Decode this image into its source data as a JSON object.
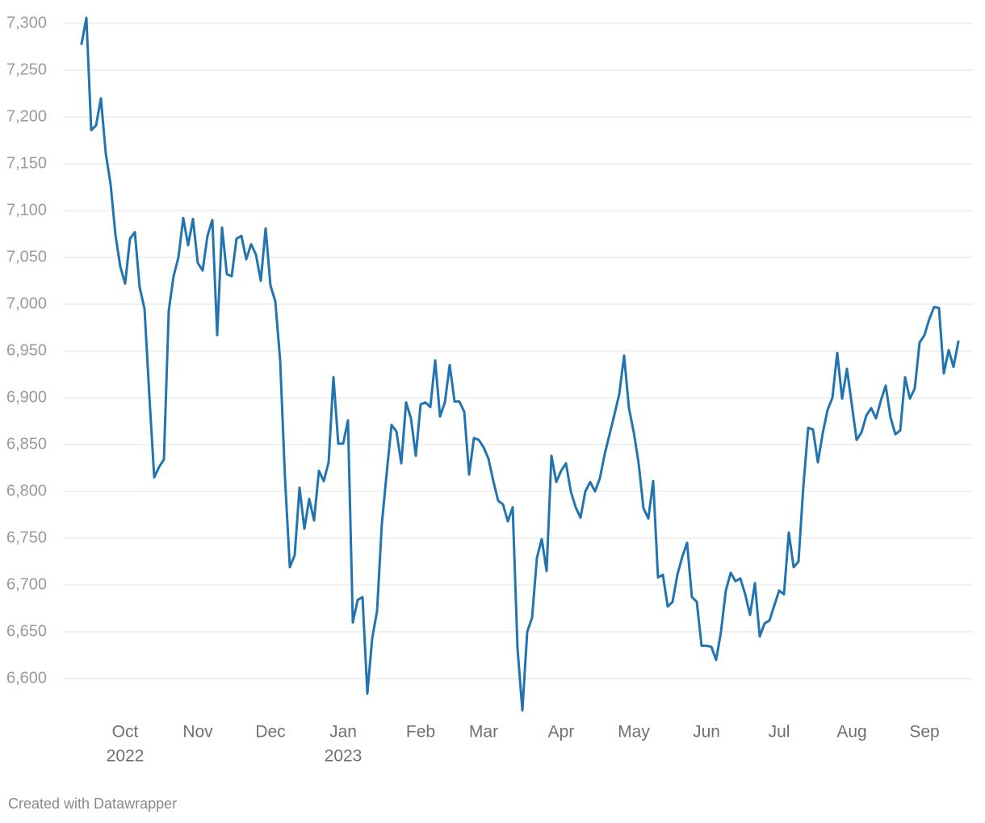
{
  "chart_data": {
    "type": "line",
    "footer": "Created with Datawrapper",
    "categories": [
      null,
      null,
      null,
      null,
      null,
      null,
      null,
      null,
      null,
      "Oct",
      null,
      null,
      null,
      null,
      null,
      null,
      null,
      null,
      null,
      null,
      null,
      null,
      null,
      null,
      "Nov",
      null,
      null,
      null,
      null,
      null,
      null,
      null,
      null,
      null,
      null,
      null,
      null,
      null,
      null,
      "Dec",
      null,
      null,
      null,
      null,
      null,
      null,
      null,
      null,
      null,
      null,
      null,
      null,
      null,
      null,
      "Jan",
      null,
      null,
      null,
      null,
      null,
      null,
      null,
      null,
      null,
      null,
      null,
      null,
      null,
      null,
      null,
      "Feb",
      null,
      null,
      null,
      null,
      null,
      null,
      null,
      null,
      null,
      null,
      null,
      null,
      "Mar",
      null,
      null,
      null,
      null,
      null,
      null,
      null,
      null,
      null,
      null,
      null,
      null,
      null,
      null,
      null,
      "Apr",
      null,
      null,
      null,
      null,
      null,
      null,
      null,
      null,
      null,
      null,
      null,
      null,
      null,
      null,
      "May",
      null,
      null,
      null,
      null,
      null,
      null,
      null,
      null,
      null,
      null,
      null,
      null,
      null,
      null,
      "Jun",
      null,
      null,
      null,
      null,
      null,
      null,
      null,
      null,
      null,
      null,
      null,
      null,
      null,
      null,
      "Jul",
      null,
      null,
      null,
      null,
      null,
      null,
      null,
      null,
      null,
      null,
      null,
      null,
      null,
      null,
      "Aug",
      null,
      null,
      null,
      null,
      null,
      null,
      null,
      null,
      null,
      null,
      null,
      null,
      null,
      null,
      "Sep",
      null,
      null,
      null,
      null,
      null,
      null,
      null
    ],
    "x_years": [
      null,
      null,
      null,
      null,
      null,
      null,
      null,
      null,
      null,
      "2022",
      null,
      null,
      null,
      null,
      null,
      null,
      null,
      null,
      null,
      null,
      null,
      null,
      null,
      null,
      null,
      null,
      null,
      null,
      null,
      null,
      null,
      null,
      null,
      null,
      null,
      null,
      null,
      null,
      null,
      null,
      null,
      null,
      null,
      null,
      null,
      null,
      null,
      null,
      null,
      null,
      null,
      null,
      null,
      null,
      "2023",
      null,
      null,
      null,
      null,
      null,
      null,
      null,
      null,
      null,
      null,
      null,
      null,
      null,
      null,
      null,
      null,
      null,
      null,
      null,
      null,
      null,
      null,
      null,
      null,
      null,
      null,
      null,
      null,
      null,
      null,
      null,
      null,
      null,
      null,
      null,
      null,
      null,
      null,
      null,
      null,
      null,
      null,
      null,
      null,
      null,
      null,
      null,
      null,
      null,
      null,
      null,
      null,
      null,
      null,
      null,
      null,
      null,
      null,
      null,
      null,
      null,
      null,
      null,
      null,
      null,
      null,
      null,
      null,
      null,
      null,
      null,
      null,
      null,
      null,
      null,
      null,
      null,
      null,
      null,
      null,
      null,
      null,
      null,
      null,
      null,
      null,
      null,
      null,
      null,
      null,
      null,
      null,
      null,
      null,
      null,
      null,
      null,
      null,
      null,
      null,
      null,
      null,
      null,
      null,
      null,
      null,
      null,
      null,
      null,
      null,
      null,
      null,
      null,
      null,
      null,
      null,
      null,
      null,
      null,
      null,
      null,
      null,
      null,
      null,
      null,
      null,
      null
    ],
    "series": [
      {
        "name": null,
        "color": "#2274b0",
        "values": [
          7278,
          7306,
          7186,
          7191,
          7220,
          7161,
          7128,
          7074,
          7040,
          7022,
          7070,
          7077,
          7018,
          6995,
          6902,
          6815,
          6826,
          6834,
          6993,
          7030,
          7050,
          7092,
          7063,
          7091,
          7044,
          7036,
          7073,
          7090,
          6967,
          7082,
          7032,
          7030,
          7070,
          7073,
          7048,
          7064,
          7053,
          7025,
          7081,
          7020,
          7003,
          6940,
          6814,
          6719,
          6732,
          6804,
          6760,
          6792,
          6769,
          6822,
          6811,
          6831,
          6922,
          6851,
          6851,
          6876,
          6660,
          6684,
          6687,
          6584,
          6643,
          6672,
          6766,
          6820,
          6871,
          6864,
          6830,
          6895,
          6878,
          6838,
          6893,
          6895,
          6890,
          6940,
          6880,
          6895,
          6935,
          6896,
          6896,
          6885,
          6818,
          6857,
          6855,
          6847,
          6835,
          6811,
          6790,
          6786,
          6768,
          6783,
          6632,
          6566,
          6650,
          6665,
          6729,
          6749,
          6715,
          6838,
          6810,
          6822,
          6830,
          6800,
          6783,
          6772,
          6800,
          6810,
          6800,
          6814,
          6840,
          6861,
          6882,
          6904,
          6945,
          6889,
          6863,
          6830,
          6782,
          6771,
          6811,
          6708,
          6711,
          6677,
          6682,
          6711,
          6730,
          6745,
          6687,
          6682,
          6635,
          6635,
          6634,
          6620,
          6650,
          6694,
          6713,
          6704,
          6707,
          6690,
          6668,
          6702,
          6645,
          6659,
          6662,
          6678,
          6694,
          6690,
          6756,
          6719,
          6725,
          6805,
          6868,
          6866,
          6831,
          6862,
          6887,
          6900,
          6948,
          6899,
          6931,
          6893,
          6855,
          6863,
          6881,
          6889,
          6878,
          6897,
          6913,
          6879,
          6861,
          6865,
          6922,
          6899,
          6910,
          6959,
          6967,
          6984,
          6997,
          6996,
          6926,
          6951,
          6933,
          6960
        ]
      }
    ],
    "ylim": [
      6560,
      7310
    ],
    "yticks": [
      {
        "value": 6600,
        "label": "6,600"
      },
      {
        "value": 6650,
        "label": "6,650"
      },
      {
        "value": 6700,
        "label": "6,700"
      },
      {
        "value": 6750,
        "label": "6,750"
      },
      {
        "value": 6800,
        "label": "6,800"
      },
      {
        "value": 6850,
        "label": "6,850"
      },
      {
        "value": 6900,
        "label": "6,900"
      },
      {
        "value": 6950,
        "label": "6,950"
      },
      {
        "value": 7000,
        "label": "7,000"
      },
      {
        "value": 7050,
        "label": "7,050"
      },
      {
        "value": 7100,
        "label": "7,100"
      },
      {
        "value": 7150,
        "label": "7,150"
      },
      {
        "value": 7200,
        "label": "7,200"
      },
      {
        "value": 7250,
        "label": "7,250"
      },
      {
        "value": 7300,
        "label": "7,300"
      }
    ],
    "grid": true
  }
}
